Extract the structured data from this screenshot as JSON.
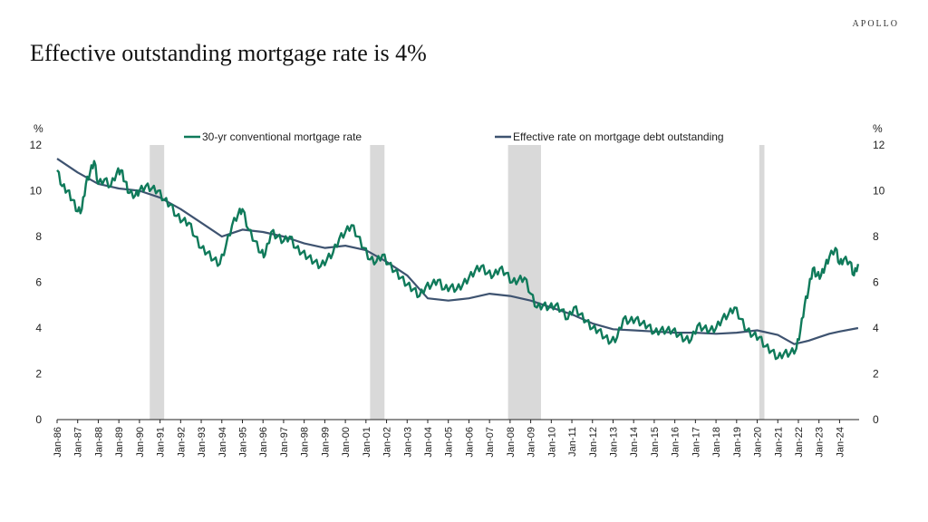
{
  "brand": "APOLLO",
  "title": "Effective outstanding mortgage rate is 4%",
  "colors": {
    "mortgage30": "#0f7a5a",
    "effective": "#3e5370",
    "recession": "#d9d9d9"
  },
  "chart_data": {
    "type": "line",
    "title": "Effective outstanding mortgage rate is 4%",
    "xlabel": "",
    "ylabel": "%",
    "ylabel_right": "%",
    "ylim": [
      0,
      12
    ],
    "yticks": [
      0,
      2,
      4,
      6,
      8,
      10,
      12
    ],
    "xlim": [
      1986.0,
      2024.95
    ],
    "xtick_labels": [
      "Jan-86",
      "Jan-87",
      "Jan-88",
      "Jan-89",
      "Jan-90",
      "Jan-91",
      "Jan-92",
      "Jan-93",
      "Jan-94",
      "Jan-95",
      "Jan-96",
      "Jan-97",
      "Jan-98",
      "Jan-99",
      "Jan-00",
      "Jan-01",
      "Jan-02",
      "Jan-03",
      "Jan-04",
      "Jan-05",
      "Jan-06",
      "Jan-07",
      "Jan-08",
      "Jan-09",
      "Jan-10",
      "Jan-11",
      "Jan-12",
      "Jan-13",
      "Jan-14",
      "Jan-15",
      "Jan-16",
      "Jan-17",
      "Jan-18",
      "Jan-19",
      "Jan-20",
      "Jan-21",
      "Jan-22",
      "Jan-23",
      "Jan-24"
    ],
    "recessions": [
      [
        1990.5,
        1991.2
      ],
      [
        2001.2,
        2001.9
      ],
      [
        2007.9,
        2009.5
      ],
      [
        2020.1,
        2020.35
      ]
    ],
    "legend_position": "top",
    "series": [
      {
        "name": "30-yr conventional mortgage rate",
        "x": [
          1986.0,
          1986.25,
          1986.5,
          1986.75,
          1987.0,
          1987.2,
          1987.4,
          1987.6,
          1987.8,
          1988.0,
          1988.3,
          1988.6,
          1988.9,
          1989.1,
          1989.3,
          1989.5,
          1989.8,
          1990.0,
          1990.3,
          1990.6,
          1990.9,
          1991.2,
          1991.5,
          1991.8,
          1992.1,
          1992.4,
          1992.7,
          1993.0,
          1993.3,
          1993.6,
          1993.9,
          1994.2,
          1994.5,
          1994.8,
          1995.0,
          1995.3,
          1995.6,
          1995.9,
          1996.1,
          1996.4,
          1996.7,
          1997.0,
          1997.3,
          1997.6,
          1997.9,
          1998.2,
          1998.5,
          1998.8,
          1999.1,
          1999.4,
          1999.7,
          2000.0,
          2000.3,
          2000.6,
          2000.9,
          2001.2,
          2001.5,
          2001.8,
          2002.1,
          2002.4,
          2002.7,
          2003.0,
          2003.3,
          2003.6,
          2003.9,
          2004.2,
          2004.5,
          2004.8,
          2005.1,
          2005.4,
          2005.7,
          2006.0,
          2006.3,
          2006.6,
          2006.9,
          2007.2,
          2007.5,
          2007.8,
          2008.1,
          2008.4,
          2008.7,
          2009.0,
          2009.3,
          2009.6,
          2009.9,
          2010.2,
          2010.5,
          2010.8,
          2011.1,
          2011.4,
          2011.7,
          2012.0,
          2012.3,
          2012.6,
          2012.9,
          2013.2,
          2013.5,
          2013.8,
          2014.1,
          2014.4,
          2014.7,
          2015.0,
          2015.3,
          2015.6,
          2015.9,
          2016.2,
          2016.5,
          2016.8,
          2017.1,
          2017.4,
          2017.7,
          2018.0,
          2018.3,
          2018.6,
          2018.9,
          2019.2,
          2019.5,
          2019.8,
          2020.1,
          2020.4,
          2020.7,
          2021.0,
          2021.3,
          2021.6,
          2021.9,
          2022.1,
          2022.3,
          2022.5,
          2022.7,
          2022.9,
          2023.1,
          2023.3,
          2023.5,
          2023.8,
          2024.0,
          2024.2,
          2024.5,
          2024.7,
          2024.9
        ],
        "values": [
          10.9,
          10.2,
          10.0,
          9.6,
          9.1,
          9.2,
          10.3,
          10.8,
          11.3,
          10.3,
          10.5,
          10.2,
          10.8,
          10.9,
          10.4,
          9.9,
          9.8,
          10.0,
          10.2,
          10.1,
          10.0,
          9.6,
          9.4,
          8.9,
          8.7,
          8.6,
          8.0,
          7.5,
          7.3,
          7.0,
          6.8,
          7.6,
          8.5,
          9.0,
          9.2,
          8.3,
          7.8,
          7.3,
          7.2,
          8.2,
          8.0,
          7.8,
          8.0,
          7.5,
          7.3,
          7.1,
          6.9,
          6.7,
          7.0,
          7.3,
          7.9,
          8.2,
          8.5,
          8.0,
          7.5,
          7.0,
          6.9,
          7.2,
          6.8,
          6.5,
          6.2,
          5.9,
          5.7,
          5.4,
          5.8,
          5.9,
          6.1,
          5.7,
          5.8,
          5.7,
          5.9,
          6.2,
          6.5,
          6.7,
          6.4,
          6.3,
          6.6,
          6.4,
          6.0,
          6.1,
          6.2,
          5.5,
          4.9,
          5.0,
          4.9,
          5.0,
          4.8,
          4.4,
          4.9,
          4.6,
          4.3,
          4.0,
          3.9,
          3.6,
          3.4,
          3.6,
          4.4,
          4.3,
          4.4,
          4.2,
          4.1,
          3.8,
          3.9,
          3.9,
          3.9,
          3.7,
          3.5,
          3.5,
          4.1,
          4.0,
          3.9,
          4.0,
          4.4,
          4.6,
          4.9,
          4.4,
          3.9,
          3.7,
          3.6,
          3.2,
          3.0,
          2.7,
          2.9,
          2.9,
          3.1,
          3.9,
          5.0,
          5.7,
          6.6,
          6.3,
          6.3,
          6.7,
          7.1,
          7.5,
          6.8,
          7.0,
          6.9,
          6.3,
          6.8
        ]
      },
      {
        "name": "Effective rate on mortgage debt outstanding",
        "x": [
          1986.0,
          1987.0,
          1988.0,
          1989.0,
          1990.0,
          1991.0,
          1992.0,
          1993.0,
          1994.0,
          1995.0,
          1996.0,
          1997.0,
          1998.0,
          1999.0,
          2000.0,
          2001.0,
          2002.0,
          2003.0,
          2004.0,
          2005.0,
          2006.0,
          2007.0,
          2008.0,
          2009.0,
          2010.0,
          2011.0,
          2012.0,
          2013.0,
          2014.0,
          2015.0,
          2016.0,
          2017.0,
          2018.0,
          2019.0,
          2020.0,
          2021.0,
          2021.8,
          2022.5,
          2023.0,
          2023.5,
          2024.0,
          2024.9
        ],
        "values": [
          11.4,
          10.8,
          10.3,
          10.1,
          10.0,
          9.7,
          9.2,
          8.6,
          8.0,
          8.3,
          8.2,
          8.0,
          7.7,
          7.5,
          7.6,
          7.4,
          6.9,
          6.3,
          5.3,
          5.2,
          5.3,
          5.5,
          5.4,
          5.2,
          4.9,
          4.6,
          4.2,
          3.95,
          3.9,
          3.85,
          3.8,
          3.8,
          3.75,
          3.8,
          3.9,
          3.7,
          3.3,
          3.45,
          3.6,
          3.75,
          3.85,
          4.0
        ]
      }
    ]
  }
}
